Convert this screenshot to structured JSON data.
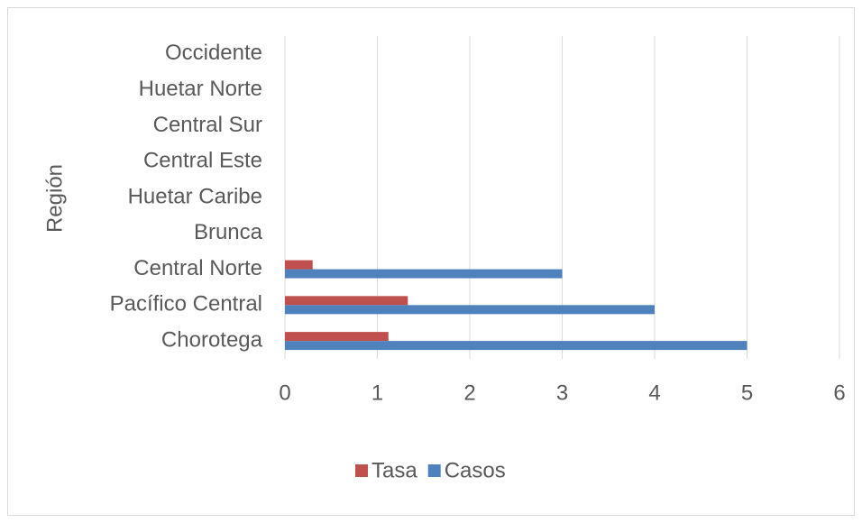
{
  "chart_data": {
    "type": "bar",
    "orientation": "horizontal",
    "y_axis_label": "Región",
    "categories": [
      "Chorotega",
      "Pacífico Central",
      "Central Norte",
      "Brunca",
      "Huetar Caribe",
      "Central Este",
      "Central Sur",
      "Huetar Norte",
      "Occidente"
    ],
    "series": [
      {
        "name": "Tasa",
        "color": "#c0504d",
        "values": [
          1.12,
          1.33,
          0.3,
          null,
          null,
          null,
          null,
          null,
          null
        ]
      },
      {
        "name": "Casos",
        "color": "#4f81bd",
        "values": [
          5,
          4,
          3,
          null,
          null,
          null,
          null,
          null,
          null
        ]
      }
    ],
    "xlim": [
      0,
      6
    ],
    "xticks": [
      0,
      1,
      2,
      3,
      4,
      5,
      6
    ],
    "grid": true,
    "legend": "bottom"
  }
}
